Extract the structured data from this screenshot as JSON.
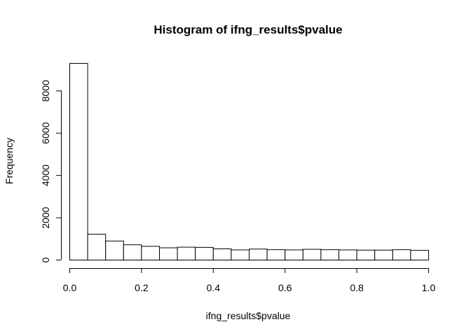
{
  "chart_data": {
    "type": "bar",
    "title": "Histogram of ifng_results$pvalue",
    "xlabel": "ifng_results$pvalue",
    "ylabel": "Frequency",
    "bin_edges": [
      0.0,
      0.05,
      0.1,
      0.15,
      0.2,
      0.25,
      0.3,
      0.35,
      0.4,
      0.45,
      0.5,
      0.55,
      0.6,
      0.65,
      0.7,
      0.75,
      0.8,
      0.85,
      0.9,
      0.95,
      1.0
    ],
    "values": [
      9300,
      1220,
      900,
      720,
      650,
      580,
      610,
      600,
      530,
      480,
      520,
      490,
      480,
      510,
      490,
      480,
      470,
      470,
      490,
      460
    ],
    "xlim": [
      0,
      1
    ],
    "ylim": [
      0,
      9300
    ],
    "x_ticks": [
      0.0,
      0.2,
      0.4,
      0.6,
      0.8,
      1.0
    ],
    "x_tick_labels": [
      "0.0",
      "0.2",
      "0.4",
      "0.6",
      "0.8",
      "1.0"
    ],
    "y_ticks": [
      0,
      2000,
      4000,
      6000,
      8000
    ],
    "y_tick_labels": [
      "0",
      "2000",
      "4000",
      "6000",
      "8000"
    ],
    "grid": false,
    "legend": "none",
    "colors": {
      "bar_fill": "#ffffff",
      "bar_stroke": "#000000"
    }
  }
}
